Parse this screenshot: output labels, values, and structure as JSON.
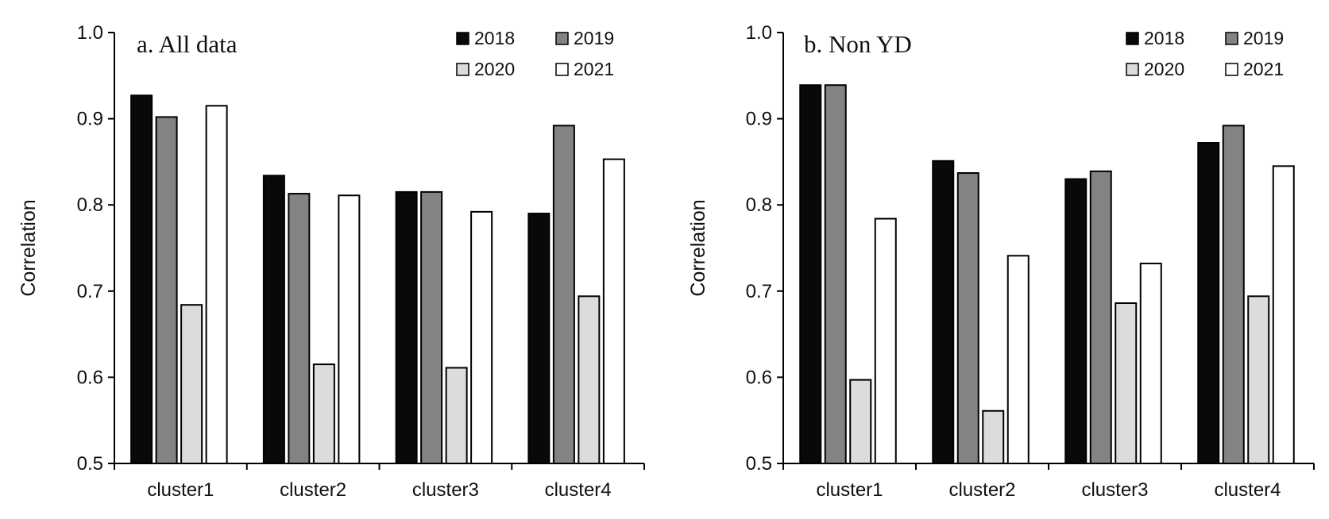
{
  "colors": {
    "2018": "#0b0808",
    "2019": "#838383",
    "2020": "#dcdcdc",
    "2021": "#ffffff",
    "axis": "#000000"
  },
  "chart_data": [
    {
      "type": "bar",
      "title": "a. All data",
      "xlabel": "",
      "ylabel": "Correlation",
      "ylim": [
        0.5,
        1.0
      ],
      "yticks": [
        "0.5",
        "0.6",
        "0.7",
        "0.8",
        "0.9",
        "1.0"
      ],
      "categories": [
        "cluster1",
        "cluster2",
        "cluster3",
        "cluster4"
      ],
      "legend_position": "top-right",
      "grid": false,
      "series": [
        {
          "name": "2018",
          "values": [
            0.927,
            0.834,
            0.815,
            0.79
          ]
        },
        {
          "name": "2019",
          "values": [
            0.902,
            0.813,
            0.815,
            0.892
          ]
        },
        {
          "name": "2020",
          "values": [
            0.684,
            0.615,
            0.611,
            0.694
          ]
        },
        {
          "name": "2021",
          "values": [
            0.915,
            0.811,
            0.792,
            0.853
          ]
        }
      ]
    },
    {
      "type": "bar",
      "title": "b. Non YD",
      "xlabel": "",
      "ylabel": "Correlation",
      "ylim": [
        0.5,
        1.0
      ],
      "yticks": [
        "0.5",
        "0.6",
        "0.7",
        "0.8",
        "0.9",
        "1.0"
      ],
      "categories": [
        "cluster1",
        "cluster2",
        "cluster3",
        "cluster4"
      ],
      "legend_position": "top-right",
      "grid": false,
      "series": [
        {
          "name": "2018",
          "values": [
            0.939,
            0.851,
            0.83,
            0.872
          ]
        },
        {
          "name": "2019",
          "values": [
            0.939,
            0.837,
            0.839,
            0.892
          ]
        },
        {
          "name": "2020",
          "values": [
            0.597,
            0.561,
            0.686,
            0.694
          ]
        },
        {
          "name": "2021",
          "values": [
            0.784,
            0.741,
            0.732,
            0.845
          ]
        }
      ]
    }
  ]
}
